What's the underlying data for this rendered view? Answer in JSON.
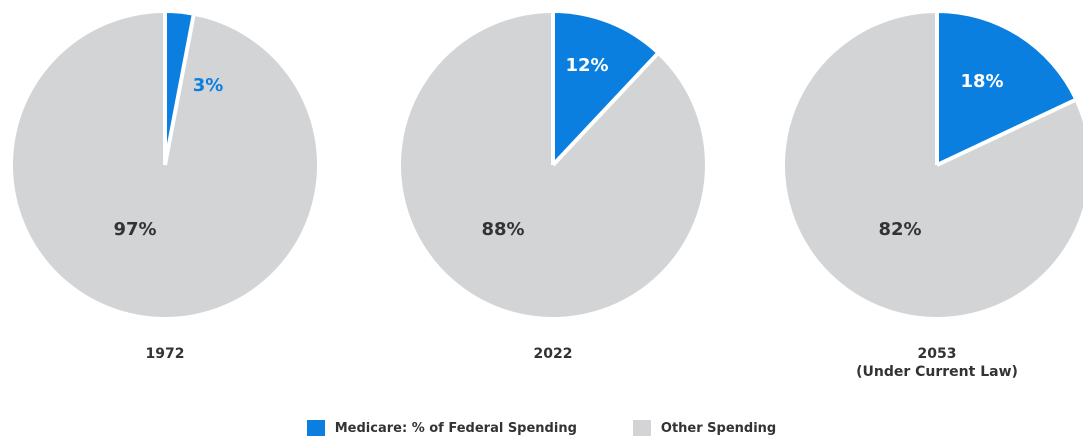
{
  "colors": {
    "medicare": "#0a7fe0",
    "other": "#d3d4d6",
    "text_dark": "#333333",
    "separator": "#ffffff"
  },
  "chart_data": [
    {
      "type": "pie",
      "year_label": [
        "1972"
      ],
      "slices": [
        {
          "series": "Medicare: % of Federal Spending",
          "value": 3,
          "label": "3%"
        },
        {
          "series": "Other Spending",
          "value": 97,
          "label": "97%"
        }
      ]
    },
    {
      "type": "pie",
      "year_label": [
        "2022"
      ],
      "slices": [
        {
          "series": "Medicare: % of Federal Spending",
          "value": 12,
          "label": "12%"
        },
        {
          "series": "Other Spending",
          "value": 88,
          "label": "88%"
        }
      ]
    },
    {
      "type": "pie",
      "year_label": [
        "2053",
        "(Under Current Law)"
      ],
      "slices": [
        {
          "series": "Medicare: % of Federal Spending",
          "value": 18,
          "label": "18%"
        },
        {
          "series": "Other Spending",
          "value": 82,
          "label": "82%"
        }
      ]
    }
  ],
  "legend": {
    "placement": "bottom-center",
    "items": [
      {
        "name": "Medicare: % of Federal Spending",
        "color": "#0a7fe0"
      },
      {
        "name": "Other Spending",
        "color": "#d3d4d6"
      }
    ]
  }
}
